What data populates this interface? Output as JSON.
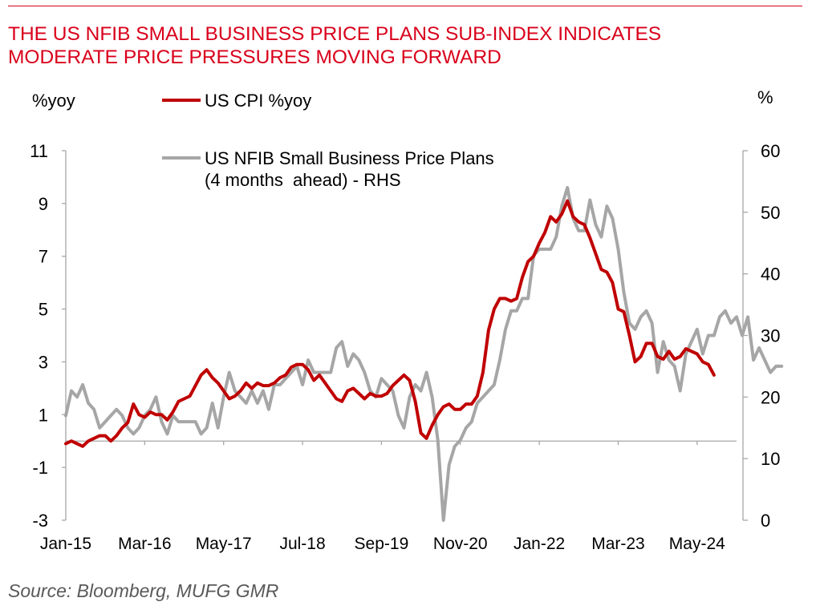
{
  "title_line1": "THE US NFIB SMALL BUSINESS PRICE PLANS SUB-INDEX INDICATES",
  "title_line2": "MODERATE PRICE PRESSURES MOVING FORWARD",
  "source": "Source: Bloomberg, MUFG GMR",
  "colors": {
    "title": "#d9001b",
    "cpi": "#c00000",
    "nfib": "#a6a6a6"
  },
  "chart_data": {
    "type": "line",
    "left_axis_label": "%yoy",
    "right_axis_label": "%",
    "left_ylim": [
      -3,
      11
    ],
    "right_ylim": [
      0,
      60
    ],
    "left_ticks": [
      -3,
      -1,
      1,
      3,
      5,
      7,
      9,
      11
    ],
    "right_ticks": [
      0,
      10,
      20,
      30,
      40,
      50,
      60
    ],
    "x_ticks": [
      "Jan-15",
      "Mar-16",
      "May-17",
      "Jul-18",
      "Sep-19",
      "Nov-20",
      "Jan-22",
      "Mar-23",
      "May-24"
    ],
    "x_start": "Jan-15",
    "x_end": "Dec-24",
    "series": [
      {
        "name": "US CPI %yoy",
        "axis": "left",
        "start": "Jan-15",
        "values": [
          -0.1,
          0.0,
          -0.1,
          -0.2,
          0.0,
          0.1,
          0.2,
          0.2,
          0.0,
          0.2,
          0.5,
          0.7,
          1.4,
          1.0,
          0.9,
          1.1,
          1.0,
          1.0,
          0.8,
          1.1,
          1.5,
          1.6,
          1.7,
          2.1,
          2.5,
          2.7,
          2.4,
          2.2,
          1.9,
          1.6,
          1.7,
          1.9,
          2.2,
          2.0,
          2.2,
          2.1,
          2.1,
          2.2,
          2.4,
          2.5,
          2.8,
          2.9,
          2.9,
          2.7,
          2.3,
          2.5,
          2.2,
          1.9,
          1.6,
          1.5,
          1.9,
          2.0,
          1.8,
          1.6,
          1.8,
          1.7,
          1.7,
          1.8,
          2.1,
          2.3,
          2.5,
          2.3,
          1.5,
          0.3,
          0.1,
          0.6,
          1.0,
          1.3,
          1.4,
          1.2,
          1.2,
          1.4,
          1.4,
          1.7,
          2.6,
          4.2,
          5.0,
          5.4,
          5.4,
          5.3,
          5.4,
          6.2,
          6.8,
          7.0,
          7.5,
          7.9,
          8.5,
          8.3,
          8.6,
          9.1,
          8.5,
          8.3,
          8.2,
          7.7,
          7.1,
          6.5,
          6.4,
          6.0,
          5.0,
          4.9,
          4.0,
          3.0,
          3.2,
          3.7,
          3.7,
          3.2,
          3.1,
          3.4,
          3.1,
          3.2,
          3.5,
          3.4,
          3.3,
          3.0,
          2.9,
          2.5
        ],
        "end_label": ""
      },
      {
        "name": "US NFIB Small Business Price Plans",
        "name_line2": "(4 months  ahead) - RHS",
        "axis": "right",
        "start": "Jan-15",
        "values": [
          17,
          21,
          20,
          22,
          19,
          18,
          15,
          16,
          17,
          18,
          17,
          15,
          14,
          15,
          17,
          18,
          20,
          16,
          14,
          17,
          16,
          16,
          16,
          16,
          14,
          15,
          19,
          15,
          20,
          24,
          21,
          20,
          19,
          21,
          19,
          21,
          18,
          22,
          22,
          23,
          24,
          25,
          22,
          26,
          24,
          24,
          24,
          24,
          28,
          29,
          25,
          27,
          26,
          24,
          21,
          20,
          23,
          22,
          21,
          17,
          15,
          20,
          22,
          21,
          24,
          20,
          13,
          0,
          9,
          12,
          13,
          15,
          16,
          19,
          20,
          21,
          22,
          26,
          31,
          34,
          34,
          36,
          36,
          43,
          44,
          44,
          44,
          46,
          51,
          54,
          49,
          47,
          47,
          52,
          48,
          46,
          51,
          49,
          44,
          37,
          32,
          31,
          33,
          34,
          32,
          24,
          29,
          26,
          25,
          21,
          27,
          29,
          31,
          27,
          30,
          30,
          33,
          34,
          32,
          33,
          30,
          33,
          26,
          28,
          26,
          24,
          25,
          25
        ]
      }
    ]
  }
}
